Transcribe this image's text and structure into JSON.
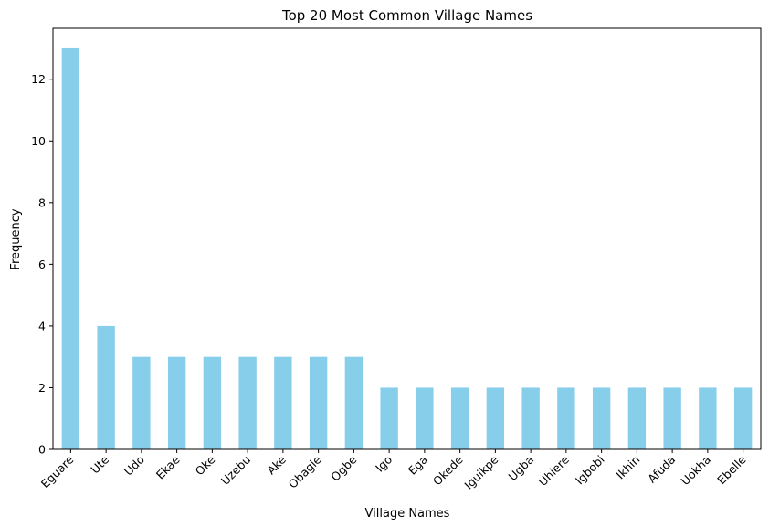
{
  "chart_data": {
    "type": "bar",
    "title": "Top 20 Most Common Village Names",
    "xlabel": "Village Names",
    "ylabel": "Frequency",
    "categories": [
      "Eguare",
      "Ute",
      "Udo",
      "Ekae",
      "Oke",
      "Uzebu",
      "Ake",
      "Obagie",
      "Ogbe",
      "Igo",
      "Ega",
      "Okede",
      "Iguikpe",
      "Ugba",
      "Uhiere",
      "Igbobi",
      "Ikhin",
      "Afuda",
      "Uokha",
      "Ebelle"
    ],
    "values": [
      13,
      4,
      3,
      3,
      3,
      3,
      3,
      3,
      3,
      2,
      2,
      2,
      2,
      2,
      2,
      2,
      2,
      2,
      2,
      2
    ],
    "ylim": [
      0,
      13.65
    ],
    "yticks": [
      0,
      2,
      4,
      6,
      8,
      10,
      12
    ],
    "grid": false,
    "bar_color": "#87CEEB",
    "axis_color": "#000000"
  }
}
